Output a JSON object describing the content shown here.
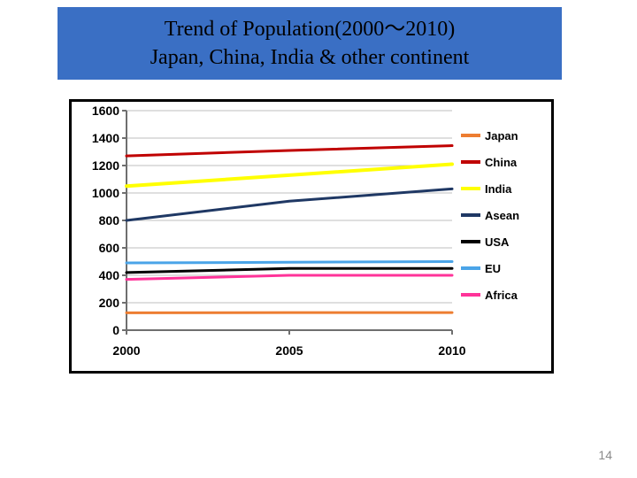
{
  "title": {
    "line1": "Trend of Population(2000～2010)",
    "line2": "Japan, China, India & other continent",
    "fontsize": 24,
    "font_family": "Times New Roman",
    "bg_color": "#3a6fc4",
    "text_color": "#000000"
  },
  "page_number": "14",
  "chart": {
    "type": "line",
    "frame_border_color": "#000000",
    "background_color": "#ffffff",
    "axis_color": "#6f6f6f",
    "grid_color": "#bfbfbf",
    "axis_line_width": 2,
    "grid_line_width": 1,
    "line_width": 3,
    "tick_font_size": 14,
    "tick_font_weight": "bold",
    "x_labels": [
      "2000",
      "2005",
      "2010"
    ],
    "x_positions": [
      0,
      1,
      2
    ],
    "ylim": [
      0,
      1600
    ],
    "ytick_step": 200,
    "y_ticks": [
      0,
      200,
      400,
      600,
      800,
      1000,
      1200,
      1400,
      1600
    ],
    "legend": {
      "font_size": 13,
      "font_weight": "bold",
      "swatch_width": 22,
      "swatch_height": 3,
      "items": [
        {
          "label": "Japan",
          "color": "#ed7d31"
        },
        {
          "label": "China",
          "color": "#c00000"
        },
        {
          "label": "India",
          "color": "#ffff00"
        },
        {
          "label": "Asean",
          "color": "#1f3864"
        },
        {
          "label": "USA",
          "color": "#000000"
        },
        {
          "label": "EU",
          "color": "#4aa4e8"
        },
        {
          "label": "Africa",
          "color": "#ff3399"
        }
      ]
    },
    "series": [
      {
        "name": "China",
        "color": "#c00000",
        "values": [
          1270,
          1310,
          1345
        ],
        "width": 3
      },
      {
        "name": "India",
        "color": "#ffff00",
        "values": [
          1050,
          1130,
          1210
        ],
        "width": 4
      },
      {
        "name": "Africa",
        "color": "#ff3399",
        "values": [
          370,
          400,
          400
        ],
        "width": 3
      },
      {
        "name": "Asean",
        "color": "#1f3864",
        "values": [
          800,
          940,
          1030
        ],
        "width": 3
      },
      {
        "name": "EU",
        "color": "#4aa4e8",
        "values": [
          490,
          495,
          500
        ],
        "width": 3
      },
      {
        "name": "USA",
        "color": "#000000",
        "values": [
          420,
          450,
          450
        ],
        "width": 3
      },
      {
        "name": "Japan",
        "color": "#ed7d31",
        "values": [
          127,
          128,
          128
        ],
        "width": 3
      }
    ]
  }
}
